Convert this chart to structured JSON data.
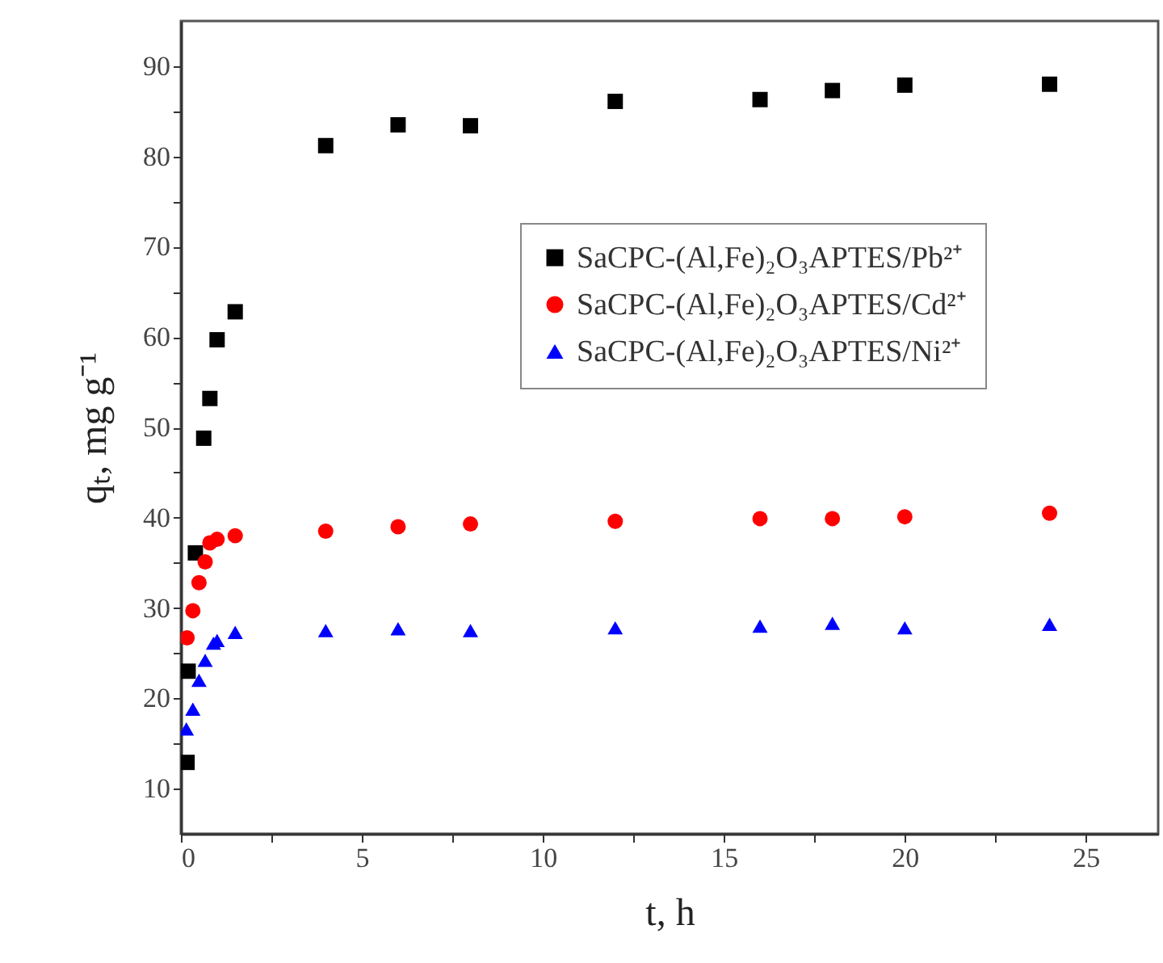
{
  "chart_data": {
    "type": "scatter",
    "xlabel": "t, h",
    "ylabel": "qₜ, mg g⁻¹",
    "xlim": [
      0,
      27
    ],
    "ylim": [
      5,
      95
    ],
    "xticks": [
      0,
      {
        "value": 2.5,
        "label": null
      },
      5,
      {
        "value": 7.5,
        "label": null
      },
      10,
      {
        "value": 12.5,
        "label": null
      },
      15,
      {
        "value": 17.5,
        "label": null
      },
      20,
      {
        "value": 22.5,
        "label": null
      },
      25
    ],
    "yticks": [
      10,
      {
        "value": 15,
        "label": null
      },
      20,
      {
        "value": 25,
        "label": null
      },
      30,
      {
        "value": 35,
        "label": null
      },
      40,
      {
        "value": 45,
        "label": null
      },
      50,
      {
        "value": 55,
        "label": null
      },
      60,
      {
        "value": 65,
        "label": null
      },
      70,
      {
        "value": 75,
        "label": null
      },
      80,
      {
        "value": 85,
        "label": null
      },
      90
    ],
    "legend": "right",
    "grid": false,
    "series": [
      {
        "name": "SaCPC-(Al,Fe)₂O₃APTES/Pb²⁺",
        "color": "#000000",
        "marker": "square",
        "x": [
          0.17,
          0.2,
          0.4,
          0.63,
          0.8,
          1,
          1.5,
          4,
          6,
          8,
          12,
          16,
          18,
          20,
          24
        ],
        "values": [
          12.9,
          23,
          36.1,
          48.8,
          53.2,
          59.7,
          62.8,
          81.2,
          83.5,
          83.4,
          86.1,
          86.3,
          87.3,
          87.9,
          88
        ]
      },
      {
        "name": "SaCPC-(Al,Fe)₂O₃APTES/Cd²⁺",
        "color": "#ff0000",
        "marker": "circle",
        "x": [
          0.17,
          0.33,
          0.5,
          0.67,
          0.8,
          1,
          1.5,
          4,
          6,
          8,
          12,
          16,
          18,
          20,
          24
        ],
        "values": [
          26.7,
          29.7,
          32.8,
          35.1,
          37.2,
          37.6,
          38,
          38.5,
          39,
          39.3,
          39.6,
          39.9,
          39.9,
          40.1,
          40.5
        ]
      },
      {
        "name": "SaCPC-(Al,Fe)₂O₃APTES/Ni²⁺",
        "color": "#0000ff",
        "marker": "triangle",
        "x": [
          0.15,
          0.33,
          0.5,
          0.67,
          0.9,
          1,
          1.5,
          4,
          6,
          8,
          12,
          16,
          18,
          20,
          24
        ],
        "values": [
          16.6,
          18.8,
          22,
          24.2,
          26.1,
          26.4,
          27.3,
          27.5,
          27.7,
          27.5,
          27.8,
          28,
          28.3,
          27.8,
          28.2
        ]
      }
    ]
  }
}
